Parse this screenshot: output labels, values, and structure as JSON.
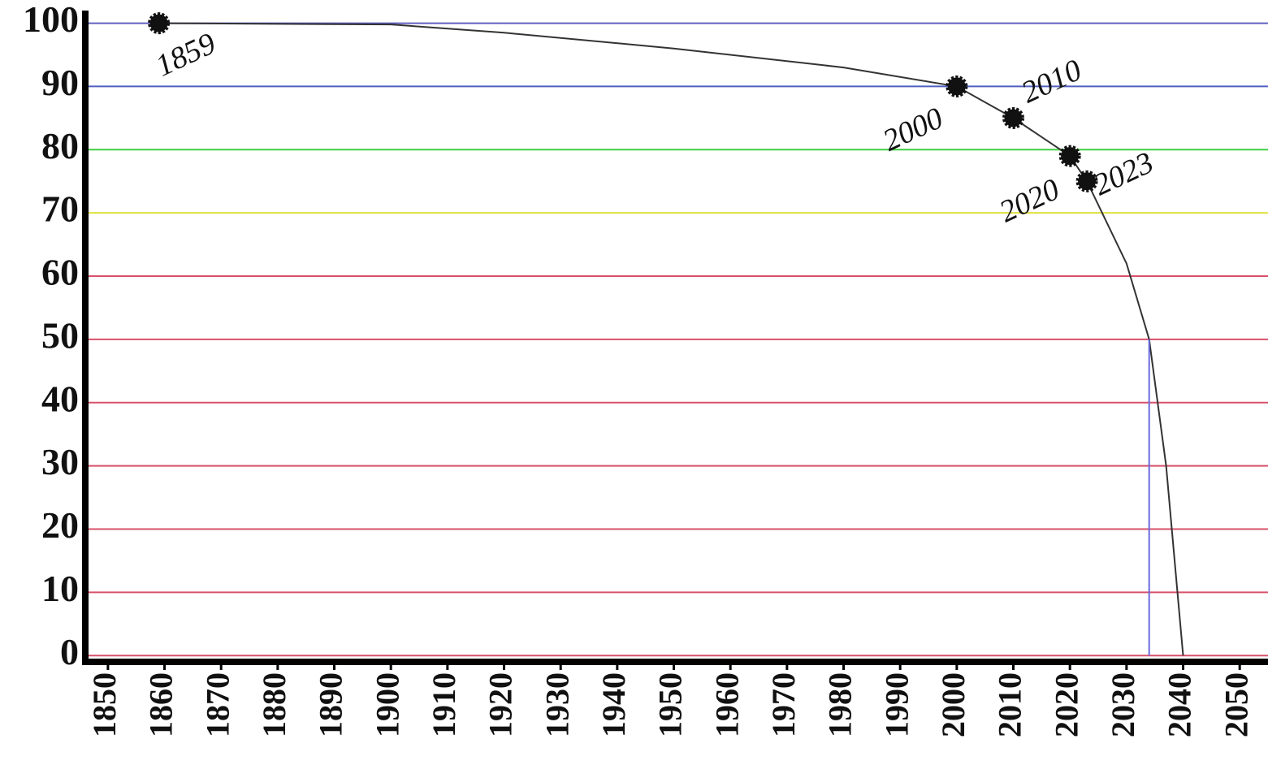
{
  "chart_data": {
    "type": "line",
    "xlim": [
      1846,
      2055
    ],
    "ylim": [
      -1,
      102
    ],
    "xticks": [
      1850,
      1860,
      1870,
      1880,
      1890,
      1900,
      1910,
      1920,
      1930,
      1940,
      1950,
      1960,
      1970,
      1980,
      1990,
      2000,
      2010,
      2020,
      2030,
      2040,
      2050
    ],
    "yticks": [
      0,
      10,
      20,
      30,
      40,
      50,
      60,
      70,
      80,
      90,
      100
    ],
    "grid": true,
    "grid_colors": [
      "#d9506a",
      "#d9506a",
      "#d9506a",
      "#d9506a",
      "#d9506a",
      "#d9506a",
      "#d9506a",
      "#e0e040",
      "#40d040",
      "#5060c0",
      "#6060c0"
    ],
    "series": [
      {
        "color": "#333333",
        "style": "curve",
        "x": [
          1859,
          1900,
          1920,
          1950,
          1980,
          2000,
          2010,
          2020,
          2023,
          2030,
          2034,
          2037,
          2039,
          2040
        ],
        "values": [
          100,
          99.8,
          98.5,
          96,
          93,
          90,
          85,
          79,
          75,
          62,
          50,
          30,
          10,
          0
        ]
      },
      {
        "color": "#111111",
        "style": "points",
        "x": [
          1859,
          2000,
          2010,
          2020,
          2023
        ],
        "values": [
          100,
          90,
          85,
          79,
          75
        ]
      },
      {
        "color": "#6a6adf",
        "style": "drop",
        "x": [
          2034,
          2034
        ],
        "values": [
          50,
          0
        ]
      }
    ]
  }
}
